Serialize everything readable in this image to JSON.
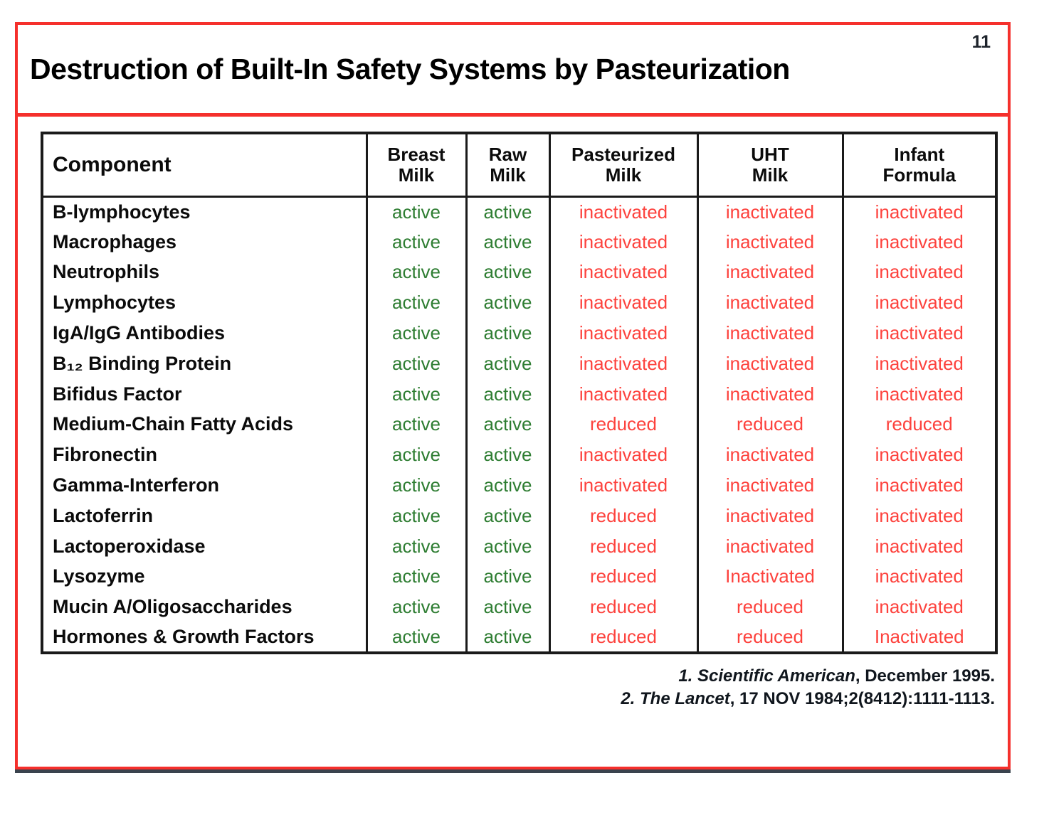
{
  "page_number": "11",
  "title": "Destruction of Built-In Safety Systems by Pasteurization",
  "colors": {
    "accent-red": "#f5302c",
    "text-red": "#fd423d",
    "text-green": "#2e7d32",
    "border-black": "#1a1a1a"
  },
  "table": {
    "columns": [
      {
        "label": "Component"
      },
      {
        "label": "Breast\nMilk"
      },
      {
        "label": "Raw\nMilk"
      },
      {
        "label": "Pasteurized\nMilk"
      },
      {
        "label": "UHT\nMilk"
      },
      {
        "label": "Infant\nFormula"
      }
    ],
    "rows": [
      {
        "component": "B-lymphocytes",
        "values": [
          "active",
          "active",
          "inactivated",
          "inactivated",
          "inactivated"
        ]
      },
      {
        "component": "Macrophages",
        "values": [
          "active",
          "active",
          "inactivated",
          "inactivated",
          "inactivated"
        ]
      },
      {
        "component": "Neutrophils",
        "values": [
          "active",
          "active",
          "inactivated",
          "inactivated",
          "inactivated"
        ]
      },
      {
        "component": "Lymphocytes",
        "values": [
          "active",
          "active",
          "inactivated",
          "inactivated",
          "inactivated"
        ]
      },
      {
        "component": "IgA/IgG Antibodies",
        "values": [
          "active",
          "active",
          "inactivated",
          "inactivated",
          "inactivated"
        ]
      },
      {
        "component": "B₁₂ Binding Protein",
        "values": [
          "active",
          "active",
          "inactivated",
          "inactivated",
          "inactivated"
        ]
      },
      {
        "component": "Bifidus Factor",
        "values": [
          "active",
          "active",
          "inactivated",
          "inactivated",
          "inactivated"
        ]
      },
      {
        "component": "Medium-Chain Fatty Acids",
        "values": [
          "active",
          "active",
          "reduced",
          "reduced",
          "reduced"
        ]
      },
      {
        "component": "Fibronectin",
        "values": [
          "active",
          "active",
          "inactivated",
          "inactivated",
          "inactivated"
        ]
      },
      {
        "component": "Gamma-Interferon",
        "values": [
          "active",
          "active",
          "inactivated",
          "inactivated",
          "inactivated"
        ]
      },
      {
        "component": "Lactoferrin",
        "values": [
          "active",
          "active",
          "reduced",
          "inactivated",
          "inactivated"
        ]
      },
      {
        "component": "Lactoperoxidase",
        "values": [
          "active",
          "active",
          "reduced",
          "inactivated",
          "inactivated"
        ]
      },
      {
        "component": "Lysozyme",
        "values": [
          "active",
          "active",
          "reduced",
          "Inactivated",
          "inactivated"
        ]
      },
      {
        "component": "Mucin A/Oligosaccharides",
        "values": [
          "active",
          "active",
          "reduced",
          "reduced",
          "inactivated"
        ]
      },
      {
        "component": "Hormones & Growth Factors",
        "values": [
          "active",
          "active",
          "reduced",
          "reduced",
          "Inactivated"
        ]
      }
    ]
  },
  "footnotes": [
    {
      "italic": "1. Scientific American",
      "regular": ", December 1995."
    },
    {
      "italic": "2. The Lancet",
      "regular": ", 17 NOV 1984;2(8412):1111-1113."
    }
  ]
}
